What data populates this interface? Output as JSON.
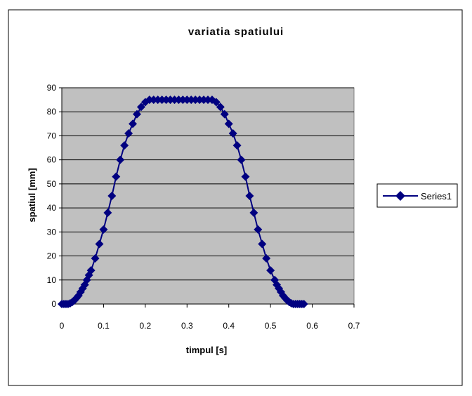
{
  "chart_data": {
    "type": "scatter",
    "title": "variatia spatiului",
    "xlabel": "timpul [s]",
    "ylabel": "spatiul [mm]",
    "xlim": [
      0,
      0.7
    ],
    "ylim": [
      0,
      90
    ],
    "xticks": [
      "0",
      "0.1",
      "0.2",
      "0.3",
      "0.4",
      "0.5",
      "0.6",
      "0.7"
    ],
    "yticks": [
      "0",
      "10",
      "20",
      "30",
      "40",
      "50",
      "60",
      "70",
      "80",
      "90"
    ],
    "grid": true,
    "legend_position": "right",
    "colors": {
      "series": "#000080",
      "plot_bg": "#c0c0c0"
    },
    "series": [
      {
        "name": "Series1",
        "x": [
          0,
          0.005,
          0.01,
          0.015,
          0.02,
          0.025,
          0.03,
          0.035,
          0.04,
          0.045,
          0.05,
          0.055,
          0.06,
          0.065,
          0.07,
          0.08,
          0.09,
          0.1,
          0.11,
          0.12,
          0.13,
          0.14,
          0.15,
          0.16,
          0.17,
          0.18,
          0.19,
          0.2,
          0.21,
          0.22,
          0.23,
          0.24,
          0.25,
          0.26,
          0.27,
          0.28,
          0.29,
          0.3,
          0.31,
          0.32,
          0.33,
          0.34,
          0.35,
          0.36,
          0.37,
          0.38,
          0.39,
          0.4,
          0.41,
          0.42,
          0.43,
          0.44,
          0.45,
          0.46,
          0.47,
          0.48,
          0.49,
          0.5,
          0.51,
          0.515,
          0.52,
          0.525,
          0.53,
          0.535,
          0.54,
          0.545,
          0.55,
          0.555,
          0.56,
          0.565,
          0.57,
          0.575,
          0.58
        ],
        "y": [
          0,
          0,
          0,
          0,
          0.3,
          0.8,
          1.5,
          2.5,
          3.5,
          5,
          6.5,
          8,
          10,
          12,
          14,
          19,
          25,
          31,
          38,
          45,
          53,
          60,
          66,
          71,
          75,
          79,
          82,
          84,
          85,
          85,
          85,
          85,
          85,
          85,
          85,
          85,
          85,
          85,
          85,
          85,
          85,
          85,
          85,
          85,
          84,
          82,
          79,
          75,
          71,
          66,
          60,
          53,
          45,
          38,
          31,
          25,
          19,
          14,
          10,
          8,
          6.5,
          5,
          3.5,
          2.5,
          1.5,
          0.8,
          0.3,
          0,
          0,
          0,
          0,
          0,
          0
        ]
      }
    ]
  }
}
